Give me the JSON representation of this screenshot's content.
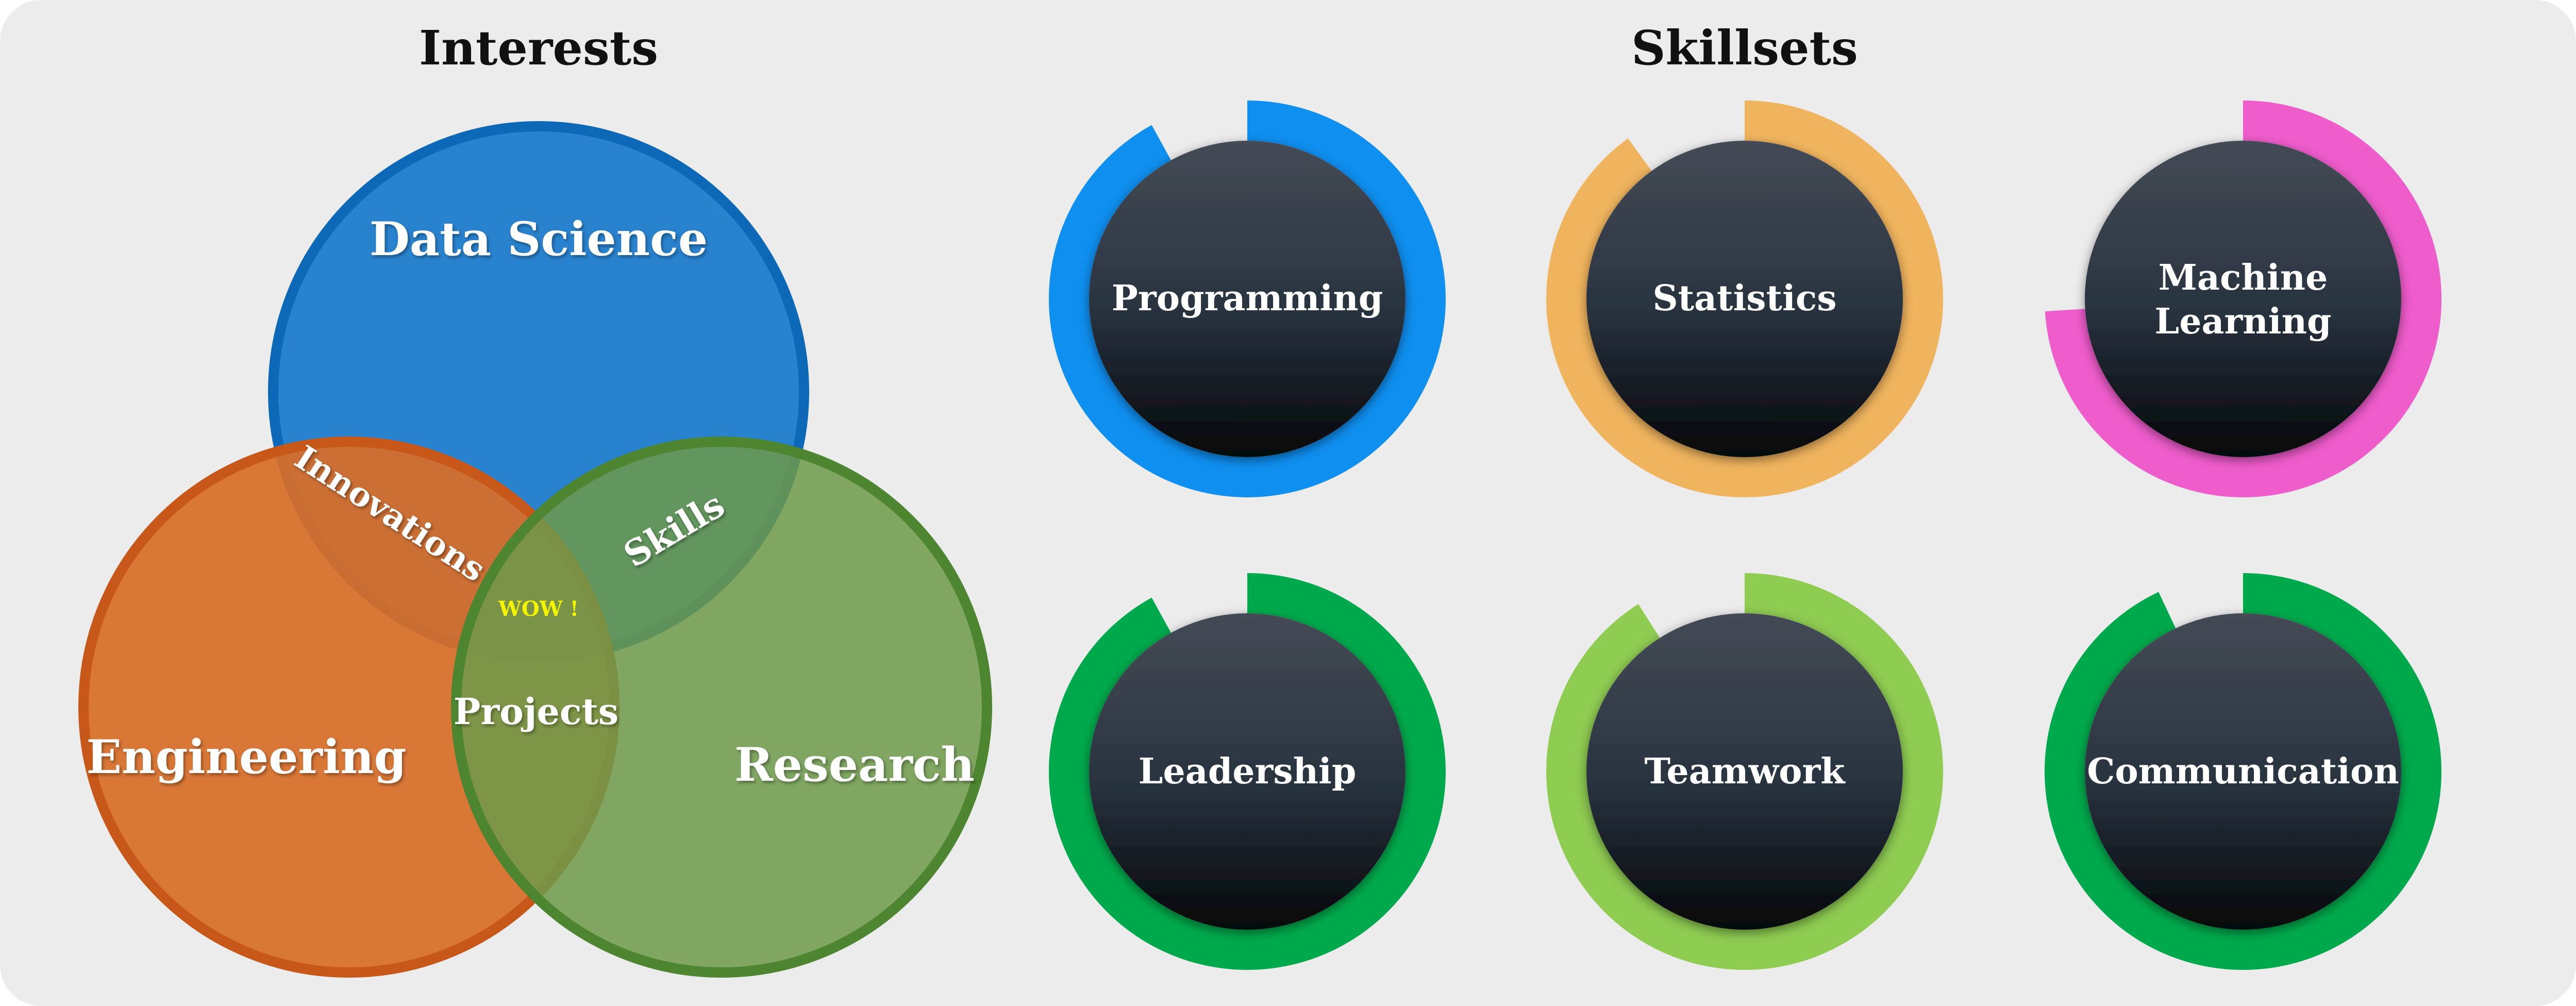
{
  "interests": {
    "heading": "Interests",
    "circles": [
      {
        "id": "data-science",
        "label": "Data Science",
        "color": "#1f7ccc",
        "border": "#0e68b8"
      },
      {
        "id": "engineering",
        "label": "Engineering",
        "color": "#d76e29",
        "border": "#c8581a"
      },
      {
        "id": "research",
        "label": "Research",
        "color": "#6d9a4a",
        "border": "#4d8530"
      }
    ],
    "overlaps": {
      "innovations": "Innovations",
      "skills": "Skills",
      "projects": "Projects",
      "center": "WOW !"
    }
  },
  "skillsets": {
    "heading": "Skillsets",
    "items": [
      {
        "id": "programming",
        "lines": [
          "Programming"
        ],
        "level": 0.92,
        "color": "#0f8ff0"
      },
      {
        "id": "statistics",
        "lines": [
          "Statistics"
        ],
        "level": 0.9,
        "color": "#f0b45e"
      },
      {
        "id": "machine-learning",
        "lines": [
          "Machine",
          "Learning"
        ],
        "level": 0.74,
        "color": "#ef5ccc"
      },
      {
        "id": "leadership",
        "lines": [
          "Leadership"
        ],
        "level": 0.92,
        "color": "#00aa4c"
      },
      {
        "id": "teamwork",
        "lines": [
          "Teamwork"
        ],
        "level": 0.91,
        "color": "#8fcc52"
      },
      {
        "id": "communication",
        "lines": [
          "Communication"
        ],
        "level": 0.93,
        "color": "#00aa4c"
      }
    ]
  },
  "colors": {
    "panel": "#ececec",
    "heading_text": "#111111",
    "label_text": "#ffffff",
    "center_label_text": "#f4f400",
    "ring_inner_top": "#444b55",
    "ring_inner_mid": "#2a3441",
    "ring_inner_bottom": "#05070a"
  }
}
